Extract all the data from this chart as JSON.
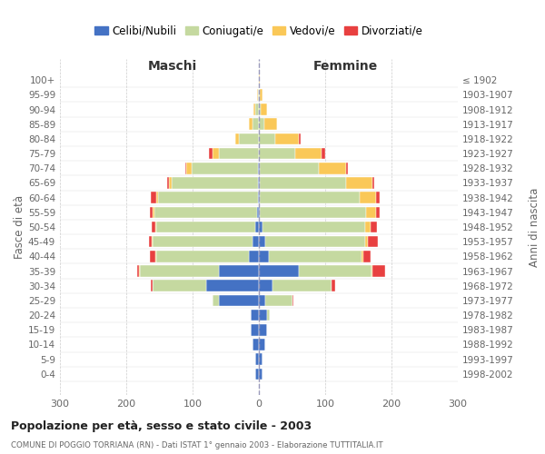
{
  "age_groups_bottom_to_top": [
    "0-4",
    "5-9",
    "10-14",
    "15-19",
    "20-24",
    "25-29",
    "30-34",
    "35-39",
    "40-44",
    "45-49",
    "50-54",
    "55-59",
    "60-64",
    "65-69",
    "70-74",
    "75-79",
    "80-84",
    "85-89",
    "90-94",
    "95-99",
    "100+"
  ],
  "birth_years_bottom_to_top": [
    "1998-2002",
    "1993-1997",
    "1988-1992",
    "1983-1987",
    "1978-1982",
    "1973-1977",
    "1968-1972",
    "1963-1967",
    "1958-1962",
    "1953-1957",
    "1948-1952",
    "1943-1947",
    "1938-1942",
    "1933-1937",
    "1928-1932",
    "1923-1927",
    "1918-1922",
    "1913-1917",
    "1908-1912",
    "1903-1907",
    "≤ 1902"
  ],
  "maschi_celibi": [
    5,
    5,
    10,
    12,
    12,
    60,
    80,
    60,
    15,
    10,
    5,
    3,
    2,
    1,
    1,
    0,
    0,
    0,
    0,
    0,
    0
  ],
  "maschi_coniugati": [
    0,
    0,
    0,
    0,
    0,
    10,
    80,
    120,
    140,
    150,
    150,
    155,
    150,
    130,
    100,
    60,
    30,
    10,
    5,
    2,
    0
  ],
  "maschi_vedovi": [
    0,
    0,
    0,
    0,
    0,
    0,
    0,
    1,
    1,
    1,
    1,
    2,
    3,
    5,
    8,
    10,
    5,
    5,
    3,
    1,
    0
  ],
  "maschi_divorziati": [
    0,
    0,
    0,
    0,
    0,
    0,
    3,
    3,
    8,
    5,
    5,
    5,
    8,
    2,
    2,
    5,
    0,
    0,
    0,
    0,
    0
  ],
  "femmine_nubili": [
    5,
    5,
    10,
    12,
    12,
    10,
    20,
    60,
    15,
    10,
    5,
    2,
    2,
    1,
    1,
    0,
    0,
    0,
    0,
    0,
    0
  ],
  "femmine_coniugate": [
    0,
    0,
    0,
    0,
    5,
    40,
    90,
    110,
    140,
    150,
    155,
    160,
    150,
    130,
    90,
    55,
    25,
    8,
    3,
    1,
    0
  ],
  "femmine_vedove": [
    0,
    0,
    0,
    0,
    0,
    0,
    0,
    1,
    2,
    5,
    8,
    15,
    25,
    40,
    40,
    40,
    35,
    20,
    10,
    5,
    2
  ],
  "femmine_divorziate": [
    0,
    0,
    0,
    0,
    0,
    2,
    5,
    20,
    12,
    15,
    10,
    5,
    5,
    3,
    3,
    5,
    3,
    0,
    0,
    0,
    0
  ],
  "colors": {
    "celibi_nubili": "#4472C4",
    "coniugati": "#C5D9A0",
    "vedovi": "#FAC858",
    "divorziati": "#E84040"
  },
  "xlim": 300,
  "title": "Popolazione per età, sesso e stato civile - 2003",
  "subtitle": "COMUNE DI POGGIO TORRIANA (RN) - Dati ISTAT 1° gennaio 2003 - Elaborazione TUTTITALIA.IT",
  "ylabel_left": "Fasce di età",
  "ylabel_right": "Anni di nascita",
  "label_maschi": "Maschi",
  "label_femmine": "Femmine",
  "legend_labels": [
    "Celibi/Nubili",
    "Coniugati/e",
    "Vedovi/e",
    "Divorziati/e"
  ],
  "background_color": "#ffffff",
  "xticks": [
    -300,
    -200,
    -100,
    0,
    100,
    200,
    300
  ],
  "xtick_labels": [
    "300",
    "200",
    "100",
    "0",
    "100",
    "200",
    "300"
  ]
}
